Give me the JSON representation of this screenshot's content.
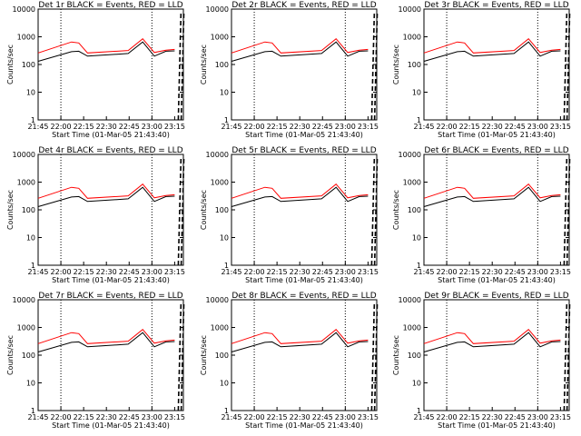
{
  "chart_data": [
    {
      "type": "line",
      "title": "Det 1r BLACK = Events, RED = LLD",
      "xlabel": "Start Time (01-Mar-05 21:43:40)",
      "ylabel": "Counts/sec",
      "x_ticks": [
        "21:45",
        "22:00",
        "22:15",
        "22:30",
        "22:45",
        "23:00",
        "23:15"
      ],
      "y_ticks": [
        "1",
        "10",
        "100",
        "1000",
        "10000"
      ],
      "y_scale": "log",
      "ylim": [
        1,
        10000
      ],
      "series": [
        {
          "color": "#000000",
          "values": [
            130,
            290,
            300,
            200,
            250,
            650,
            200,
            300,
            310
          ]
        },
        {
          "color": "#ff0000",
          "values": [
            260,
            650,
            600,
            260,
            320,
            850,
            270,
            330,
            350
          ]
        }
      ]
    },
    {
      "type": "line",
      "title": "Det 2r BLACK = Events, RED = LLD",
      "xlabel": "Start Time (01-Mar-05 21:43:40)",
      "ylabel": "Counts/sec",
      "x_ticks": [
        "21:45",
        "22:00",
        "22:15",
        "22:30",
        "22:45",
        "23:00",
        "23:15"
      ],
      "y_ticks": [
        "1",
        "10",
        "100",
        "1000",
        "10000"
      ],
      "y_scale": "log",
      "ylim": [
        1,
        10000
      ],
      "series": [
        {
          "color": "#000000",
          "values": [
            130,
            290,
            300,
            200,
            250,
            650,
            200,
            300,
            310
          ]
        },
        {
          "color": "#ff0000",
          "values": [
            260,
            650,
            600,
            260,
            320,
            850,
            270,
            330,
            350
          ]
        }
      ]
    },
    {
      "type": "line",
      "title": "Det 3r BLACK = Events, RED = LLD",
      "xlabel": "Start Time (01-Mar-05 21:43:40)",
      "ylabel": "Counts/sec",
      "x_ticks": [
        "21:45",
        "22:00",
        "22:15",
        "22:30",
        "22:45",
        "23:00",
        "23:15"
      ],
      "y_ticks": [
        "1",
        "10",
        "100",
        "1000",
        "10000"
      ],
      "y_scale": "log",
      "ylim": [
        1,
        10000
      ],
      "series": [
        {
          "color": "#000000",
          "values": [
            130,
            290,
            300,
            200,
            250,
            650,
            200,
            300,
            310
          ]
        },
        {
          "color": "#ff0000",
          "values": [
            260,
            650,
            600,
            260,
            320,
            850,
            270,
            330,
            350
          ]
        }
      ]
    },
    {
      "type": "line",
      "title": "Det 4r BLACK = Events, RED = LLD",
      "xlabel": "Start Time (01-Mar-05 21:43:40)",
      "ylabel": "Counts/sec",
      "x_ticks": [
        "21:45",
        "22:00",
        "22:15",
        "22:30",
        "22:45",
        "23:00",
        "23:15"
      ],
      "y_ticks": [
        "1",
        "10",
        "100",
        "1000",
        "10000"
      ],
      "y_scale": "log",
      "ylim": [
        1,
        10000
      ],
      "series": [
        {
          "color": "#000000",
          "values": [
            130,
            290,
            300,
            200,
            250,
            650,
            200,
            300,
            310
          ]
        },
        {
          "color": "#ff0000",
          "values": [
            260,
            650,
            600,
            260,
            320,
            850,
            270,
            330,
            350
          ]
        }
      ]
    },
    {
      "type": "line",
      "title": "Det 5r BLACK = Events, RED = LLD",
      "xlabel": "Start Time (01-Mar-05 21:43:40)",
      "ylabel": "Counts/sec",
      "x_ticks": [
        "21:45",
        "22:00",
        "22:15",
        "22:30",
        "22:45",
        "23:00",
        "23:15"
      ],
      "y_ticks": [
        "1",
        "10",
        "100",
        "1000",
        "10000"
      ],
      "y_scale": "log",
      "ylim": [
        1,
        10000
      ],
      "series": [
        {
          "color": "#000000",
          "values": [
            130,
            290,
            300,
            200,
            250,
            650,
            200,
            300,
            310
          ]
        },
        {
          "color": "#ff0000",
          "values": [
            260,
            650,
            600,
            260,
            320,
            850,
            270,
            330,
            350
          ]
        }
      ]
    },
    {
      "type": "line",
      "title": "Det 6r BLACK = Events, RED = LLD",
      "xlabel": "Start Time (01-Mar-05 21:43:40)",
      "ylabel": "Counts/sec",
      "x_ticks": [
        "21:45",
        "22:00",
        "22:15",
        "22:30",
        "22:45",
        "23:00",
        "23:15"
      ],
      "y_ticks": [
        "1",
        "10",
        "100",
        "1000",
        "10000"
      ],
      "y_scale": "log",
      "ylim": [
        1,
        10000
      ],
      "series": [
        {
          "color": "#000000",
          "values": [
            130,
            290,
            300,
            200,
            250,
            650,
            200,
            300,
            310
          ]
        },
        {
          "color": "#ff0000",
          "values": [
            260,
            650,
            600,
            260,
            320,
            850,
            270,
            330,
            350
          ]
        }
      ]
    },
    {
      "type": "line",
      "title": "Det 7r BLACK = Events, RED = LLD",
      "xlabel": "Start Time (01-Mar-05 21:43:40)",
      "ylabel": "Counts/sec",
      "x_ticks": [
        "21:45",
        "22:00",
        "22:15",
        "22:30",
        "22:45",
        "23:00",
        "23:15"
      ],
      "y_ticks": [
        "1",
        "10",
        "100",
        "1000",
        "10000"
      ],
      "y_scale": "log",
      "ylim": [
        1,
        10000
      ],
      "series": [
        {
          "color": "#000000",
          "values": [
            130,
            290,
            300,
            200,
            250,
            650,
            200,
            300,
            310
          ]
        },
        {
          "color": "#ff0000",
          "values": [
            260,
            650,
            600,
            260,
            320,
            850,
            270,
            330,
            350
          ]
        }
      ]
    },
    {
      "type": "line",
      "title": "Det 8r BLACK = Events, RED = LLD",
      "xlabel": "Start Time (01-Mar-05 21:43:40)",
      "ylabel": "Counts/sec",
      "x_ticks": [
        "21:45",
        "22:00",
        "22:15",
        "22:30",
        "22:45",
        "23:00",
        "23:15"
      ],
      "y_ticks": [
        "1",
        "10",
        "100",
        "1000",
        "10000"
      ],
      "y_scale": "log",
      "ylim": [
        1,
        10000
      ],
      "series": [
        {
          "color": "#000000",
          "values": [
            130,
            290,
            300,
            200,
            250,
            650,
            200,
            300,
            310
          ]
        },
        {
          "color": "#ff0000",
          "values": [
            260,
            650,
            600,
            260,
            320,
            850,
            270,
            330,
            350
          ]
        }
      ]
    },
    {
      "type": "line",
      "title": "Det 9r BLACK = Events, RED = LLD",
      "xlabel": "Start Time (01-Mar-05 21:43:40)",
      "ylabel": "Counts/sec",
      "x_ticks": [
        "21:45",
        "22:00",
        "22:15",
        "22:30",
        "22:45",
        "23:00",
        "23:15"
      ],
      "y_ticks": [
        "1",
        "10",
        "100",
        "1000",
        "10000"
      ],
      "y_scale": "log",
      "ylim": [
        1,
        10000
      ],
      "series": [
        {
          "color": "#000000",
          "values": [
            130,
            290,
            300,
            200,
            250,
            650,
            200,
            300,
            310
          ]
        },
        {
          "color": "#ff0000",
          "values": [
            260,
            650,
            600,
            260,
            320,
            850,
            270,
            330,
            350
          ]
        }
      ]
    }
  ]
}
